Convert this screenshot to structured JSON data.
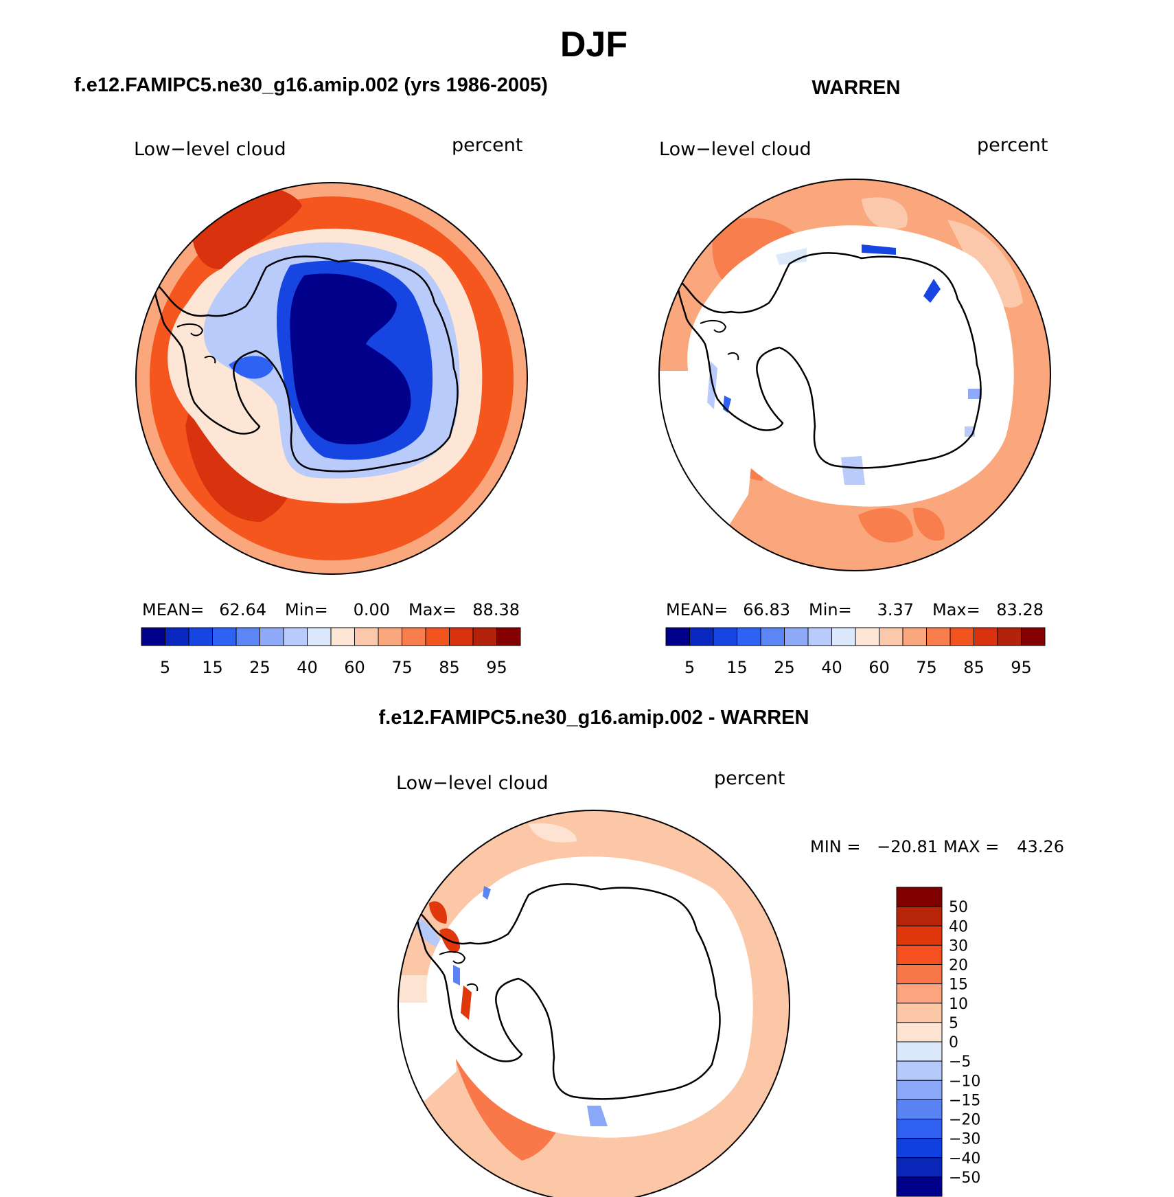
{
  "title": "DJF",
  "panels": [
    {
      "id": "model",
      "heading": "f.e12.FAMIPC5.ne30_g16.amip.002 (yrs 1986-2005)",
      "variable": "Low−level cloud",
      "units": "percent",
      "stats": {
        "mean_label": "MEAN=",
        "mean": "62.64",
        "min_label": "Min=",
        "min": "0.00",
        "max_label": "Max=",
        "max": "88.38"
      },
      "colorbar_ticks": [
        "5",
        "15",
        "25",
        "40",
        "60",
        "75",
        "85",
        "95"
      ]
    },
    {
      "id": "obs",
      "heading": "WARREN",
      "variable": "Low−level cloud",
      "units": "percent",
      "stats": {
        "mean_label": "MEAN=",
        "mean": "66.83",
        "min_label": "Min=",
        "min": "3.37",
        "max_label": "Max=",
        "max": "83.28"
      },
      "colorbar_ticks": [
        "5",
        "15",
        "25",
        "40",
        "60",
        "75",
        "85",
        "95"
      ]
    },
    {
      "id": "diff",
      "heading": "f.e12.FAMIPC5.ne30_g16.amip.002 - WARREN",
      "variable": "Low−level cloud",
      "units": "percent",
      "stats": {
        "min_label": "MIN =",
        "min": "−20.81",
        "max_label": "MAX =",
        "max": "43.26"
      },
      "colorbar_ticks": [
        "50",
        "40",
        "30",
        "20",
        "15",
        "10",
        "5",
        "0",
        "−5",
        "−10",
        "−15",
        "−20",
        "−30",
        "−40",
        "−50"
      ]
    }
  ],
  "colors": {
    "abs_scale": [
      "#00008b",
      "#0a28c0",
      "#1745e2",
      "#2e62f2",
      "#5c86f6",
      "#8eaaf8",
      "#b8cbfa",
      "#dce8fc",
      "#fde6d6",
      "#fcc8ac",
      "#fba77e",
      "#f97e4e",
      "#f2541f",
      "#d8330e",
      "#b3220a",
      "#850000"
    ],
    "diff_scale": [
      "#800000",
      "#b82408",
      "#e0380c",
      "#f45020",
      "#f9784a",
      "#fba47e",
      "#fcc7a7",
      "#fde4d2",
      "#dbe8fc",
      "#b5cafa",
      "#8aa8f7",
      "#5a84f4",
      "#3060f0",
      "#1040e0",
      "#0a26b8",
      "#00008b"
    ],
    "outline": "#000000"
  }
}
